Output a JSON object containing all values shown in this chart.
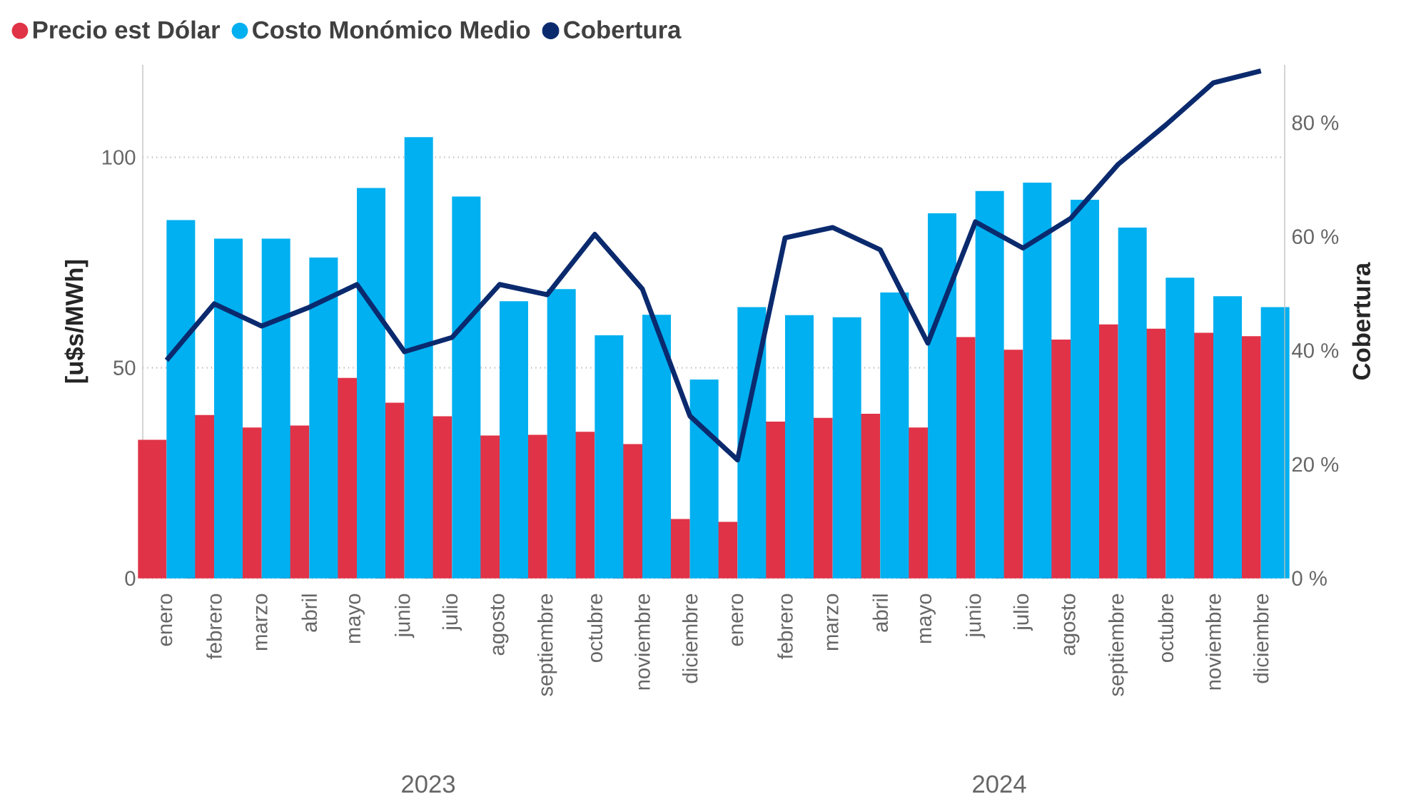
{
  "chart_data": {
    "type": "bar",
    "categories": [
      "enero",
      "febrero",
      "marzo",
      "abril",
      "mayo",
      "junio",
      "julio",
      "agosto",
      "septiembre",
      "octubre",
      "noviembre",
      "diciembre",
      "enero",
      "febrero",
      "marzo",
      "abril",
      "mayo",
      "junio",
      "julio",
      "agosto",
      "septiembre",
      "octubre",
      "noviembre",
      "diciembre"
    ],
    "series": [
      {
        "name": "Precio est Dólar",
        "color": "#e03347",
        "values": [
          32.9,
          38.8,
          35.8,
          36.3,
          47.6,
          41.7,
          38.5,
          33.9,
          34.1,
          34.8,
          31.9,
          14.1,
          13.4,
          37.2,
          38.1,
          39.1,
          35.8,
          57.3,
          54.3,
          56.7,
          60.3,
          59.3,
          58.3,
          57.5
        ]
      },
      {
        "name": "Costo Monómico Medio",
        "color": "#00b0f0",
        "values": [
          85.1,
          80.7,
          80.7,
          76.2,
          92.7,
          104.8,
          90.7,
          65.8,
          68.7,
          57.7,
          62.6,
          47.2,
          64.4,
          62.5,
          62.0,
          67.9,
          86.7,
          92.0,
          94.0,
          89.9,
          83.3,
          71.4,
          67.0,
          64.4
        ]
      },
      {
        "name": "Cobertura",
        "type": "line",
        "axis": "y2",
        "color": "#0b2a6e",
        "values": [
          38.3,
          48.2,
          44.3,
          47.6,
          51.6,
          39.8,
          42.3,
          51.6,
          49.8,
          60.4,
          50.8,
          28.5,
          20.8,
          59.8,
          61.6,
          57.7,
          41.3,
          62.6,
          58.0,
          63.2,
          72.7,
          79.6,
          87.0,
          89.1
        ]
      }
    ],
    "ylabel": "[u$s/MWh]",
    "y2label": "Cobertura",
    "ylim": [
      0,
      122
    ],
    "yticks": [
      0,
      50,
      100
    ],
    "y2lim": [
      0,
      90.2
    ],
    "y2ticks": [
      {
        "value": 0,
        "label": "0 %"
      },
      {
        "value": 20,
        "label": "20 %"
      },
      {
        "value": 40,
        "label": "40 %"
      },
      {
        "value": 60,
        "label": "60 %"
      },
      {
        "value": 80,
        "label": "80 %"
      }
    ],
    "annotations": [
      "2023",
      "2024"
    ],
    "grid": "y",
    "legend": "top left",
    "marker": "none",
    "line_style": "solid"
  }
}
